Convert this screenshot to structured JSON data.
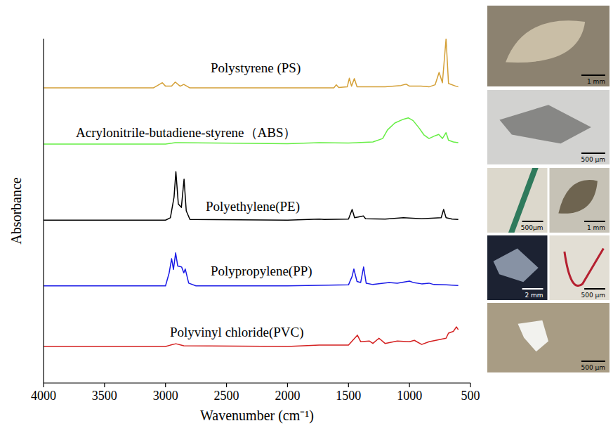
{
  "chart_data": {
    "type": "line",
    "x_label": "Wavenumber (cm⁻¹)",
    "y_label": "Absorbance",
    "xlim": [
      4000,
      500
    ],
    "xticks": [
      4000,
      3500,
      3000,
      2500,
      2000,
      1500,
      1000,
      500
    ],
    "ylim": [
      0,
      10
    ],
    "tick_labels": "x",
    "grid": false,
    "series": [
      {
        "name": "Polystyrene (PS)",
        "color": "#d4a037",
        "x": [
          4000,
          3100,
          3060,
          3026,
          3000,
          2950,
          2920,
          2880,
          2850,
          2800,
          2000,
          1620,
          1600,
          1580,
          1510,
          1493,
          1475,
          1452,
          1430,
          1370,
          1200,
          1070,
          1028,
          1000,
          906,
          840,
          790,
          757,
          730,
          700,
          680,
          620,
          600
        ],
        "values": [
          8.57,
          8.57,
          8.65,
          8.72,
          8.62,
          8.62,
          8.74,
          8.62,
          8.67,
          8.57,
          8.57,
          8.57,
          8.66,
          8.58,
          8.6,
          8.85,
          8.62,
          8.84,
          8.6,
          8.6,
          8.6,
          8.64,
          8.68,
          8.62,
          8.62,
          8.6,
          8.66,
          9.02,
          8.72,
          10.0,
          8.7,
          8.62,
          8.6
        ]
      },
      {
        "name": "Acrylonitrile-butadiene-styrene（ABS）",
        "color": "#66ee44",
        "x": [
          4000,
          3000,
          2920,
          2000,
          1740,
          1500,
          1300,
          1220,
          1180,
          1120,
          1050,
          1010,
          970,
          920,
          880,
          840,
          790,
          760,
          730,
          700,
          680,
          640,
          600
        ],
        "values": [
          6.94,
          6.94,
          6.98,
          6.95,
          6.98,
          6.97,
          7.0,
          7.1,
          7.35,
          7.55,
          7.66,
          7.7,
          7.62,
          7.4,
          7.2,
          7.1,
          7.18,
          7.22,
          7.1,
          7.27,
          7.05,
          7.0,
          6.98
        ]
      },
      {
        "name": "Polyethylene(PE)",
        "color": "#000000",
        "x": [
          4000,
          3000,
          2960,
          2930,
          2915,
          2895,
          2870,
          2848,
          2830,
          2800,
          2000,
          1740,
          1700,
          1500,
          1470,
          1450,
          1377,
          1360,
          1200,
          1050,
          900,
          740,
          720,
          700,
          650,
          600
        ],
        "values": [
          4.73,
          4.73,
          4.8,
          5.4,
          6.14,
          5.2,
          5.1,
          5.92,
          5.0,
          4.75,
          4.73,
          4.76,
          4.75,
          4.76,
          5.04,
          4.8,
          4.85,
          4.77,
          4.76,
          4.8,
          4.77,
          4.8,
          5.04,
          4.8,
          4.76,
          4.75
        ]
      },
      {
        "name": "Polypropylene(PP)",
        "color": "#1a1ae6",
        "x": [
          4000,
          3000,
          2970,
          2950,
          2935,
          2917,
          2900,
          2868,
          2850,
          2838,
          2810,
          2750,
          2000,
          1500,
          1470,
          1456,
          1430,
          1400,
          1376,
          1355,
          1300,
          1167,
          1100,
          1000,
          970,
          900,
          840,
          800,
          700,
          600
        ],
        "values": [
          2.82,
          2.82,
          3.2,
          3.61,
          3.3,
          3.78,
          3.4,
          3.37,
          3.2,
          3.31,
          2.9,
          2.82,
          2.82,
          2.85,
          3.1,
          3.31,
          2.95,
          2.92,
          3.37,
          2.9,
          2.86,
          2.92,
          2.9,
          2.96,
          2.92,
          2.88,
          2.9,
          2.86,
          2.85,
          2.83
        ]
      },
      {
        "name": "Polyvinyl chloride(PVC)",
        "color": "#d42020",
        "x": [
          4000,
          3000,
          2960,
          2915,
          2850,
          2000,
          1740,
          1500,
          1427,
          1400,
          1330,
          1300,
          1250,
          1200,
          1100,
          1000,
          960,
          900,
          840,
          700,
          680,
          640,
          615,
          600
        ],
        "values": [
          1.06,
          1.06,
          1.1,
          1.14,
          1.08,
          1.06,
          1.1,
          1.1,
          1.39,
          1.2,
          1.22,
          1.15,
          1.3,
          1.15,
          1.22,
          1.2,
          1.24,
          1.12,
          1.2,
          1.3,
          1.45,
          1.5,
          1.63,
          1.55
        ]
      }
    ]
  },
  "micrograph_scale_bars": [
    [
      "1 mm"
    ],
    [
      "500 μm"
    ],
    [
      "500μm",
      "1 mm"
    ],
    [
      "2 mm",
      "500 μm"
    ],
    [
      "500 μm"
    ]
  ]
}
